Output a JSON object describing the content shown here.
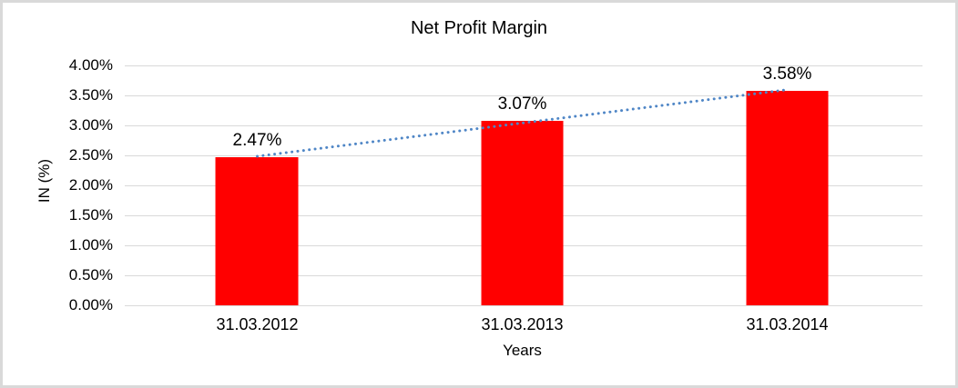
{
  "chart_data": {
    "type": "bar",
    "title": "Net Profit Margin",
    "xlabel": "Years",
    "ylabel": "IN (%)",
    "categories": [
      "31.03.2012",
      "31.03.2013",
      "31.03.2014"
    ],
    "values": [
      2.47,
      3.07,
      3.58
    ],
    "data_labels": [
      "2.47%",
      "3.07%",
      "3.58%"
    ],
    "ylim": [
      0,
      4
    ],
    "ytick_step": 0.5,
    "ytick_labels_top_to_bottom": [
      "4.00%",
      "3.50%",
      "3.00%",
      "2.50%",
      "2.00%",
      "1.50%",
      "1.00%",
      "0.50%",
      "0.00%"
    ],
    "grid": true,
    "legend_position": "none",
    "bar_color": "#ff0000",
    "gridline_color": "#d9d9d9",
    "frame_border_color": "#d9d9d9",
    "text_color": "#000000",
    "trendline": {
      "type": "linear",
      "style": "dotted",
      "color": "#4f86c6",
      "spans_categories": [
        1,
        3
      ]
    }
  }
}
